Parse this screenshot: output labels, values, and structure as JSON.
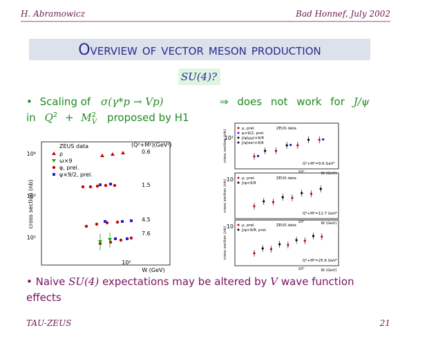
{
  "header": {
    "author": "H. Abramowicz",
    "venue": "Bad Honnef, July 2002"
  },
  "title": "Overview of vector meson production",
  "subtitle": "SU(4)?",
  "left_bullet": {
    "marker": "•",
    "text1": "Scaling of",
    "math1": "σ(γ*p → Vp)",
    "text2": "in",
    "q": "Q",
    "q_exp": "2",
    "plus": "+",
    "m": "M",
    "m_exp": "2",
    "m_sub": "V",
    "text3": "proposed by H1"
  },
  "right_bullet": {
    "arrow": "⇒",
    "text": "does not work for",
    "math": "J/ψ"
  },
  "left_figure": {
    "y_label": "cross section (nb)",
    "x_label": "W (GeV)",
    "title": "ZEUS data",
    "scale_label": "(Q²+M²)(GeV²)",
    "legend": [
      "ρ",
      "ω×9",
      "φ, prel.",
      "ψ×9/2, prel."
    ],
    "scales": [
      "0.6",
      "1.5",
      "4.5",
      "7.6"
    ],
    "y_tick_labels": [
      "10⁴",
      "10³",
      "10²"
    ],
    "x_tick_labels": [
      "10²"
    ]
  },
  "right_figures": [
    {
      "y_label": "cross section (nb)",
      "x_label": "W (GeV)",
      "title": "ZEUS data",
      "legend": [
        "ρ, prel.",
        "ψ×9/2, prel.",
        "J/ψ(μμ)×9/8",
        "J/ψ(ee)×9/8"
      ],
      "scale_label": "Q²+M²=9.6 GeV²",
      "y_tick_labels": [
        "10²"
      ],
      "x_tick_labels": [
        "10²"
      ]
    },
    {
      "y_label": "cross section (nb)",
      "x_label": "W (GeV)",
      "title": "ZEUS data",
      "legend": [
        "ρ, prel.",
        "J/ψ×9/8"
      ],
      "scale_label": "Q²+M²=12.7 GeV²",
      "y_tick_labels": [
        "10"
      ],
      "x_tick_labels": [
        "10²"
      ]
    },
    {
      "y_label": "cross section (nb)",
      "x_label": "W (GeV)",
      "title": "ZEUS data",
      "legend": [
        "ρ, prel.",
        "J/ψ×9/8, prel."
      ],
      "scale_label": "Q²+M²=25.6 GeV²",
      "y_tick_labels": [
        "10"
      ],
      "x_tick_labels": [
        "10²"
      ]
    }
  ],
  "bottom_bullet": {
    "marker": "•",
    "t1": "Naive",
    "su": "SU(4)",
    "t2": "expectations may be altered by",
    "v": "V",
    "t3": "wave function",
    "t4": "effects"
  },
  "footer": {
    "left": "TAU-ZEUS",
    "page": "21"
  }
}
